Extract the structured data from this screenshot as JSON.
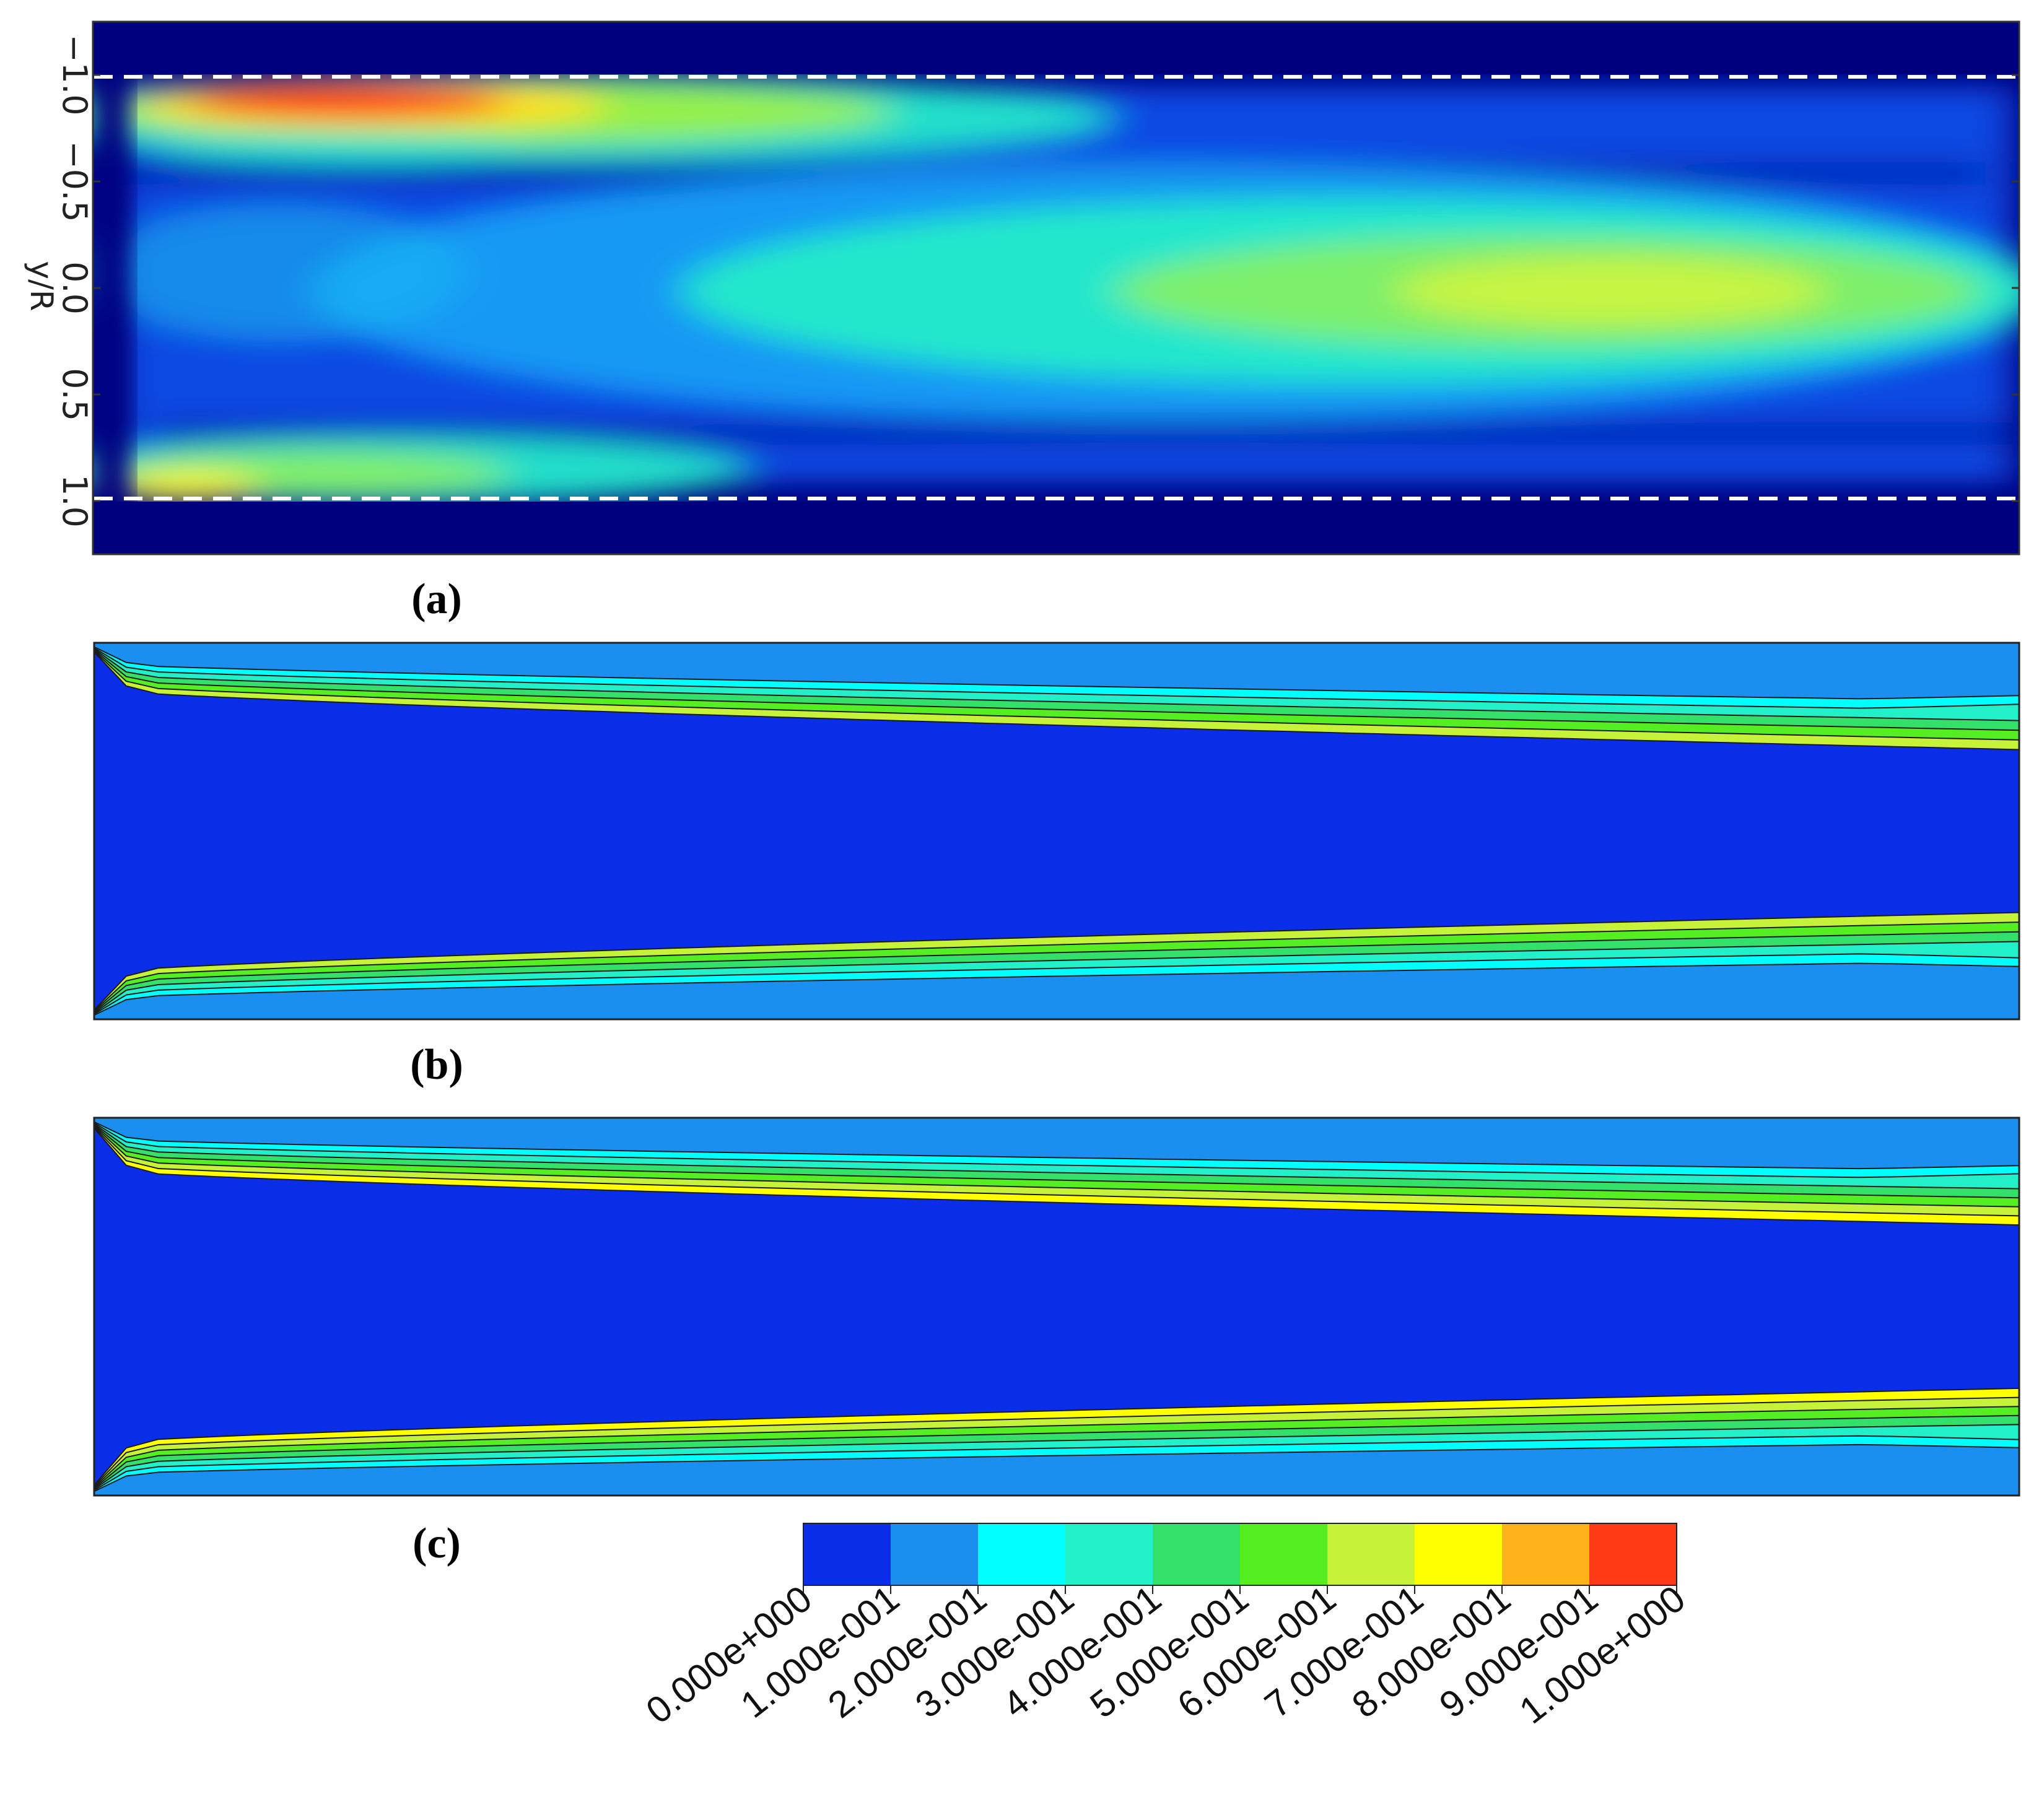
{
  "chart_data": [
    {
      "type": "heatmap",
      "panel_label": "(a)",
      "ylabel": "y/R",
      "yticks": [
        "−1.0",
        "−0.5",
        "0.0",
        "0.5",
        "1.0"
      ],
      "ytick_values": [
        -1.0,
        -0.5,
        0.0,
        0.5,
        1.0
      ],
      "ylim": [
        -1.25,
        1.25
      ],
      "y_inverted": true,
      "wall_lines_y": [
        -1.0,
        1.0
      ],
      "wall_line_style": "white dashed",
      "hotspots": [
        {
          "x_frac_range": [
            0.03,
            0.32
          ],
          "y": -0.85,
          "peak": 1.0
        },
        {
          "x_frac_range": [
            0.3,
            1.0
          ],
          "y": 0.0,
          "peak": 0.7
        },
        {
          "x_frac_range": [
            0.0,
            0.35
          ],
          "y": 0.9,
          "peak": 0.6
        }
      ]
    },
    {
      "type": "heatmap",
      "panel_label": "(b)",
      "style": "filled contour",
      "description_levels": "near-wall bands of 0.1–0.6 thinning downstream, core 0–0.1",
      "bands_top_start": [
        0.6,
        0.5,
        0.4,
        0.3,
        0.2,
        0.1
      ],
      "bands_bottom_start": [
        0.6,
        0.5,
        0.4,
        0.3,
        0.2,
        0.1
      ]
    },
    {
      "type": "heatmap",
      "panel_label": "(c)",
      "style": "filled contour",
      "bands_top_start": [
        0.7,
        0.6,
        0.5,
        0.4,
        0.3,
        0.2,
        0.1
      ],
      "bands_bottom_start": [
        0.7,
        0.6,
        0.5,
        0.4,
        0.3,
        0.2,
        0.1
      ]
    }
  ],
  "colorbar": {
    "min": 0.0,
    "max": 1.0,
    "labels": [
      "0.000e+000",
      "1.000e-001",
      "2.000e-001",
      "3.000e-001",
      "4.000e-001",
      "5.000e-001",
      "6.000e-001",
      "7.000e-001",
      "8.000e-001",
      "9.000e-001",
      "1.000e+000"
    ],
    "colors": [
      "#0a2ee8",
      "#1a8ff0",
      "#00ffff",
      "#22f0c8",
      "#33e06a",
      "#55ee22",
      "#c6f23a",
      "#ffff00",
      "#ffb21a",
      "#ff3a14"
    ]
  },
  "colors": {
    "dark_background": "#00007f",
    "core_blue": "#0a3ff0",
    "wall_line": "#ffffff"
  }
}
